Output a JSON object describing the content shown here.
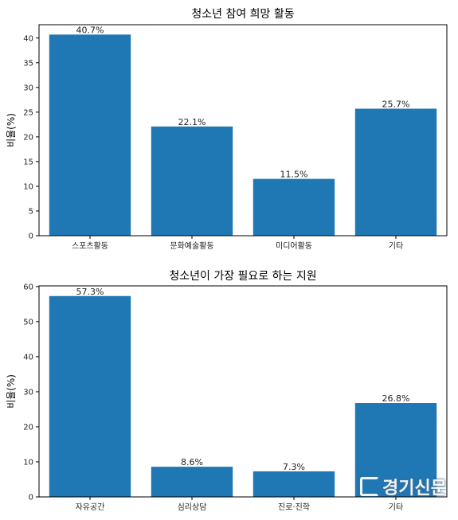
{
  "chart_data": [
    {
      "type": "bar",
      "title": "청소년 참여 희망 활동",
      "ylabel": "비율(%)",
      "xlabel": "",
      "categories": [
        "스포츠활동",
        "문화예술활동",
        "미디어활동",
        "기타"
      ],
      "values": [
        40.7,
        22.1,
        11.5,
        25.7
      ],
      "value_labels": [
        "40.7%",
        "22.1%",
        "11.5%",
        "25.7%"
      ],
      "ylim": [
        0,
        42.7
      ],
      "yticks": [
        0,
        5,
        10,
        15,
        20,
        25,
        30,
        35,
        40
      ],
      "grid": false,
      "bar_color": "#1f77b4"
    },
    {
      "type": "bar",
      "title": "청소년이 가장 필요로 하는 지원",
      "ylabel": "비율(%)",
      "xlabel": "",
      "categories": [
        "자유공간",
        "심리상담",
        "진로·진학",
        "기타"
      ],
      "values": [
        57.3,
        8.6,
        7.3,
        26.8
      ],
      "value_labels": [
        "57.3%",
        "8.6%",
        "7.3%",
        "26.8%"
      ],
      "ylim": [
        0,
        60.2
      ],
      "yticks": [
        0,
        10,
        20,
        30,
        40,
        50,
        60
      ],
      "grid": false,
      "bar_color": "#1f77b4"
    }
  ],
  "watermark": {
    "text": "경기신문"
  }
}
